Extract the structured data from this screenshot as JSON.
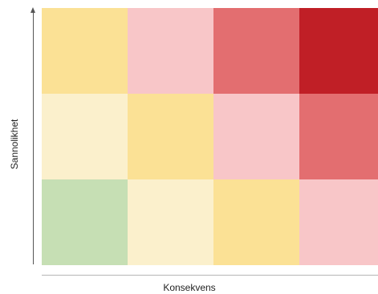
{
  "axes": {
    "y_label": "Sannolikhet",
    "x_label": "Konsekvens"
  },
  "matrix": {
    "rows": [
      [
        "#fbe195",
        "#f8c6c8",
        "#e36e70",
        "#c01f26"
      ],
      [
        "#fbf0cc",
        "#fbe195",
        "#f8c6c8",
        "#e36e70"
      ],
      [
        "#c6dfb4",
        "#fbf0cc",
        "#fbe195",
        "#f8c6c8"
      ]
    ]
  }
}
